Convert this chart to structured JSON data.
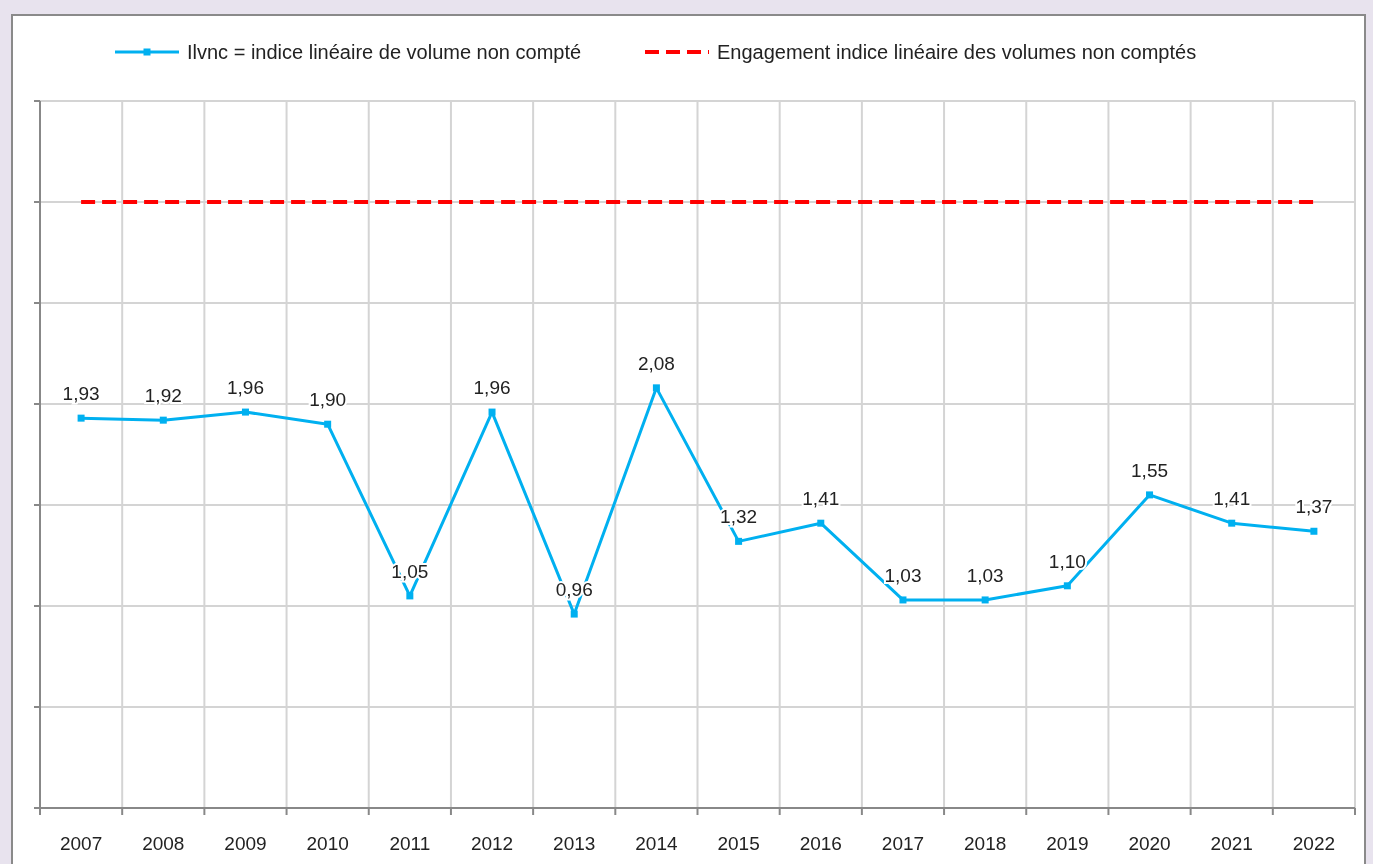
{
  "chart_data": {
    "type": "line",
    "categories": [
      "2007",
      "2008",
      "2009",
      "2010",
      "2011",
      "2012",
      "2013",
      "2014",
      "2015",
      "2016",
      "2017",
      "2018",
      "2019",
      "2020",
      "2021",
      "2022"
    ],
    "ylim": [
      0,
      3.5
    ],
    "yticks": [
      {
        "value": 0,
        "label": null
      },
      {
        "value": 0.5,
        "label": null
      },
      {
        "value": 1,
        "label": null
      },
      {
        "value": 1.5,
        "label": null
      },
      {
        "value": 2,
        "label": null
      },
      {
        "value": 2.5,
        "label": null
      },
      {
        "value": 3,
        "label": null
      },
      {
        "value": 3.5,
        "label": null
      }
    ],
    "tick_labels": "x",
    "grid": true,
    "legend": "top",
    "series": [
      {
        "name": "Ilvnc = indice linéaire de volume non compté",
        "color": "#00b0f0",
        "marker": "square",
        "values": [
          1.93,
          1.92,
          1.96,
          1.9,
          1.05,
          1.96,
          0.96,
          2.08,
          1.32,
          1.41,
          1.03,
          1.03,
          1.1,
          1.55,
          1.41,
          1.37
        ],
        "value_labels": [
          "1,93",
          "1,92",
          "1,96",
          "1,90",
          "1,05",
          "1,96",
          "0,96",
          "2,08",
          "1,32",
          "1,41",
          "1,03",
          "1,03",
          "1,10",
          "1,55",
          "1,41",
          "1,37"
        ]
      },
      {
        "name": "Engagement indice linéaire des volumes non comptés",
        "color": "#ff0000",
        "line_style": "dashed",
        "marker": "none",
        "values": [
          3,
          3,
          3,
          3,
          3,
          3,
          3,
          3,
          3,
          3,
          3,
          3,
          3,
          3,
          3,
          3
        ]
      }
    ]
  }
}
